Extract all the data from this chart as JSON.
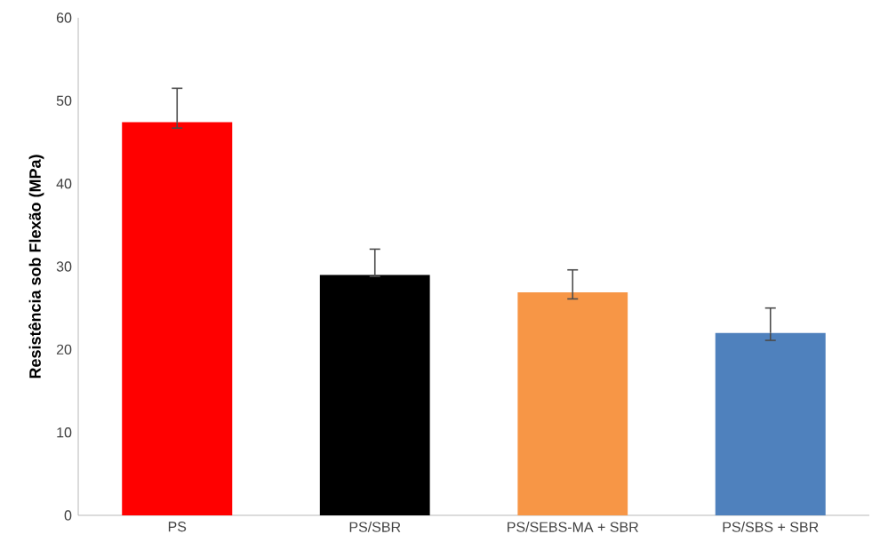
{
  "chart_data": {
    "type": "bar",
    "ylabel": "Resistência sob Flexão (MPa)",
    "categories": [
      "PS",
      "PS/SBR",
      "PS/SEBS-MA + SBR",
      "PS/SBS + SBR"
    ],
    "values": [
      47.4,
      29.0,
      26.9,
      22.0
    ],
    "colors": [
      "#ff0000",
      "#000000",
      "#f79646",
      "#4f81bd"
    ],
    "errors": [
      [
        46.7,
        51.5
      ],
      [
        28.8,
        32.1
      ],
      [
        26.1,
        29.6
      ],
      [
        21.1,
        25.0
      ]
    ],
    "ylim": [
      0,
      60
    ],
    "yticks": [
      0,
      10,
      20,
      30,
      40,
      50,
      60
    ],
    "grid": false
  }
}
